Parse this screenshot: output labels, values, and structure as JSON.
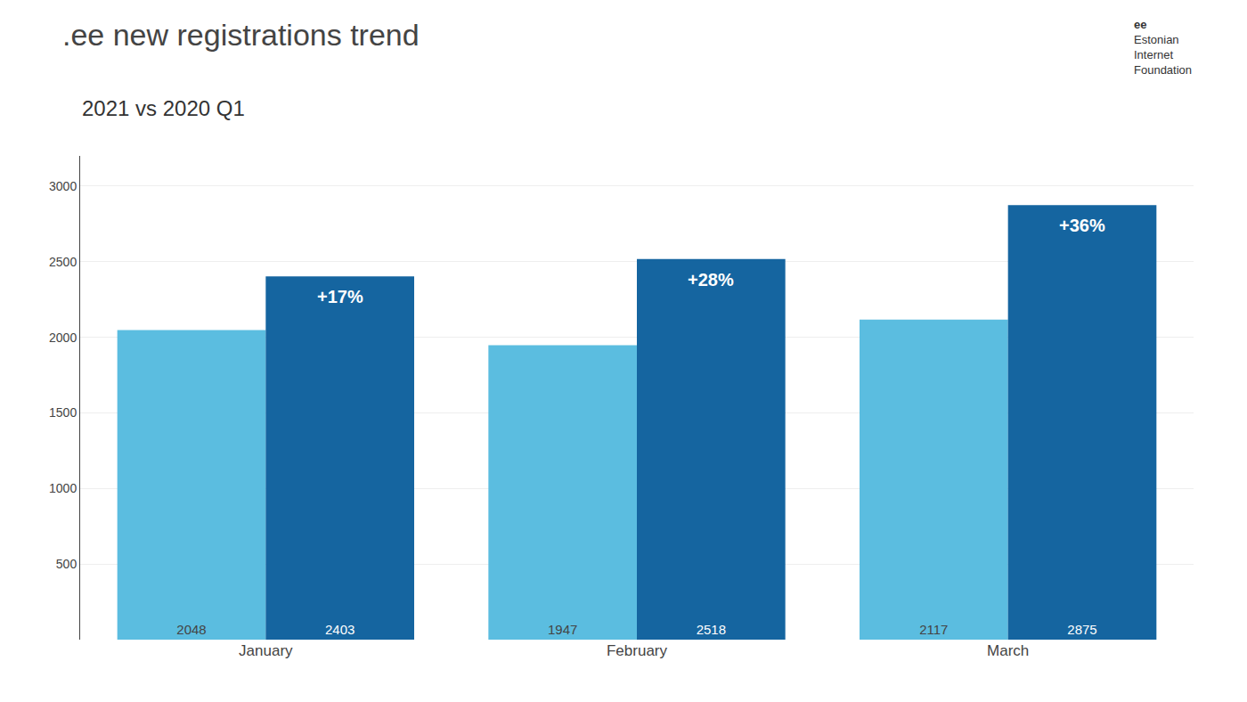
{
  "chart_data": {
    "type": "bar",
    "title": ".ee new registrations trend",
    "subtitle": "2021 vs 2020 Q1",
    "categories": [
      "January",
      "February",
      "March"
    ],
    "series": [
      {
        "name": "2020",
        "color": "#5bbde0",
        "values": [
          2048,
          1947,
          2117
        ]
      },
      {
        "name": "2021",
        "color": "#1565a0",
        "values": [
          2403,
          2518,
          2875
        ]
      }
    ],
    "ylim": [
      0,
      3200
    ],
    "yticks": [
      500,
      1000,
      1500,
      2000,
      2500,
      3000
    ],
    "grid": true,
    "data_labels": true,
    "annotations": [
      {
        "text": "+17%",
        "x": "January",
        "series": "2021"
      },
      {
        "text": "+28%",
        "x": "February",
        "series": "2021"
      },
      {
        "text": "+36%",
        "x": "March",
        "series": "2021"
      },
      {
        "text": "ee"
      },
      {
        "text": "Estonian Internet Foundation"
      }
    ]
  }
}
